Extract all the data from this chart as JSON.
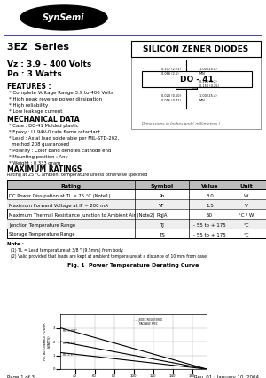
{
  "title_series": "3EZ  Series",
  "title_product": "SILICON ZENER DIODES",
  "vz": "Vz : 3.9 - 400 Volts",
  "pd": "Po : 3 Watts",
  "package": "DO - 41",
  "features_title": "FEATURES :",
  "features": [
    "* Complete Voltage Range 3.9 to 400 Volts",
    "* High peak reverse power dissipation",
    "* High reliability",
    "* Low leakage current"
  ],
  "mech_title": "MECHANICAL DATA",
  "mech": [
    "* Case : DO-41 Molded plastic",
    "* Epoxy : UL94V-0 rate flame retardant",
    "* Lead : Axial lead solderable per MIL-STD-202,",
    "  method 208 guaranteed",
    "* Polarity : Color band denotes cathode end",
    "* Mounting position : Any",
    "* Weight : 0.333 gram"
  ],
  "max_ratings_title": "MAXIMUM RATINGS",
  "max_ratings_sub": "Rating at 25 °C ambient temperature unless otherwise specified",
  "table_headers": [
    "Rating",
    "Symbol",
    "Value",
    "Unit"
  ],
  "table_rows": [
    [
      "DC Power Dissipation at TL = 75 °C (Note1)",
      "Po",
      "3.0",
      "W"
    ],
    [
      "Maximum Forward Voltage at IF = 200 mA",
      "VF",
      "1.5",
      "V"
    ],
    [
      "Maximum Thermal Resistance Junction to Ambient Air (Note2)",
      "RqJA",
      "50",
      "°C / W"
    ],
    [
      "Junction Temperature Range",
      "TJ",
      "- 55 to + 175",
      "°C"
    ],
    [
      "Storage Temperature Range",
      "TS",
      "- 55 to + 175",
      "°C"
    ]
  ],
  "note_title": "Note :",
  "notes": [
    "(1) TL = Lead temperature at 3/8 \" (9.5mm) from body.",
    "(2) Valid provided that leads are kept at ambient temperature at a distance of 10 mm from case."
  ],
  "fig_title": "Fig. 1  Power Temperature Derating Curve",
  "footer_left": "Page 1 of 3",
  "footer_right": "Rev. 01 : January 10, 2004",
  "bg_color": "#ffffff",
  "dim_text": "Dimensions in Inches and ( millimeters )"
}
